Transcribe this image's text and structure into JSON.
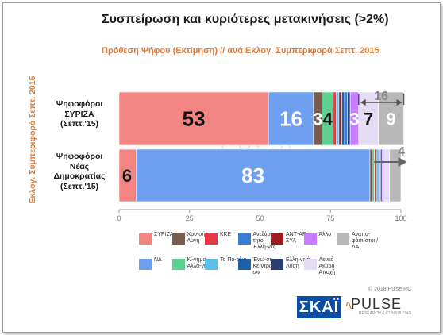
{
  "header": {
    "title": "Συσπείρωση και κυριότερες μετακινήσεις (>2%)",
    "subtitle": "Πρόθεση Ψήφου (Εκτίμηση) // ανά Εκλογ. Συμπεριφορά Σεπτ. 2015",
    "side_label": "Εκλογ. Συμπεριφορά Σεπτ. 2015"
  },
  "chart_data": {
    "type": "bar",
    "orientation": "horizontal",
    "stacked": true,
    "title": "Συσπείρωση και κυριότερες μετακινήσεις (>2%)",
    "subtitle": "Πρόθεση Ψήφου (Εκτίμηση) // ανά Εκλογ. Συμπεριφορά Σεπτ. 2015",
    "xlim": [
      0,
      100
    ],
    "xticks": [
      0,
      25,
      50,
      75,
      100
    ],
    "grid": false,
    "legend_position": "bottom",
    "categories": [
      "Ψηφοφόροι ΣΥΡΙΖΑ (Σεπτ.'15)",
      "Ψηφοφόροι Νέας Δημοκρατίας (Σεπτ.'15)"
    ],
    "category_lines": [
      [
        "Ψηφοφόροι",
        "ΣΥΡΙΖΑ",
        "(Σεπτ.'15)"
      ],
      [
        "Ψηφοφόροι",
        "Νέας",
        "Δημοκρατίας",
        "(Σεπτ.'15)"
      ]
    ],
    "series": [
      {
        "name": "ΣΥΡΙΖΑ",
        "color": "#f28482",
        "values": [
          53,
          6
        ],
        "labels": [
          "53",
          "6"
        ]
      },
      {
        "name": "ΝΔ",
        "color": "#6fa0f0",
        "values": [
          16,
          83
        ],
        "labels": [
          "16",
          "83"
        ]
      },
      {
        "name": "Χρυσή Αυγή",
        "color": "#7a5c4e",
        "values": [
          3,
          0.8
        ],
        "labels": [
          "3",
          ""
        ]
      },
      {
        "name": "Κίνημα Αλλαγής",
        "color": "#5ed08f",
        "values": [
          4,
          0.8
        ],
        "labels": [
          "4",
          ""
        ]
      },
      {
        "name": "ΚΚΕ",
        "color": "#e63946",
        "values": [
          1,
          0.5
        ],
        "labels": [
          "",
          ""
        ]
      },
      {
        "name": "Το Ποτάμι",
        "color": "#5bc0eb",
        "values": [
          1,
          0.5
        ],
        "labels": [
          "",
          ""
        ]
      },
      {
        "name": "ΑΝΤ-ΑΡ-ΣΥΑ",
        "color": "#9e1b1b",
        "values": [
          1,
          0.3
        ],
        "labels": [
          "",
          ""
        ]
      },
      {
        "name": "Ένωση Κεντρώων",
        "color": "#1d5fa8",
        "values": [
          1,
          0.6
        ],
        "labels": [
          "",
          ""
        ]
      },
      {
        "name": "Ανεξάρτητοι Έλληνες",
        "color": "#3a7bd5",
        "values": [
          1,
          0.4
        ],
        "labels": [
          "",
          ""
        ]
      },
      {
        "name": "Ελληνική Λύση",
        "color": "#2c3e70",
        "values": [
          1,
          0.4
        ],
        "labels": [
          "",
          ""
        ]
      },
      {
        "name": "Άλλο",
        "color": "#c77dff",
        "values": [
          3,
          0.7
        ],
        "labels": [
          "3",
          ""
        ]
      },
      {
        "name": "Λευκό Άκυρο Αποχή",
        "color": "#e4ddf3",
        "values": [
          7,
          2
        ],
        "labels": [
          "7",
          ""
        ]
      },
      {
        "name": "Αναποφάσιστοι / ΔΑ",
        "color": "#b8b8b8",
        "values": [
          9,
          4
        ],
        "labels": [
          "9",
          ""
        ]
      }
    ],
    "annotations": [
      {
        "bar": 0,
        "text": "16",
        "kind": "bracket"
      },
      {
        "bar": 1,
        "text": "4",
        "kind": "arrow"
      }
    ]
  },
  "legend": {
    "items": [
      {
        "label": "ΣΥΡΙΖΑ",
        "color": "#f28482"
      },
      {
        "label": "Χρυ-σή Αυγή",
        "color": "#7a5c4e"
      },
      {
        "label": "ΚΚΕ",
        "color": "#e63946"
      },
      {
        "label": "Ανεξάρ-τητοι Έλλη-νες",
        "color": "#3a7bd5"
      },
      {
        "label": "ΑΝΤ-ΑΡ-ΣΥΑ",
        "color": "#9e1b1b"
      },
      {
        "label": "Άλλο",
        "color": "#c77dff"
      },
      {
        "label": "Αναπο-φάσι-στοι / ΔΑ",
        "color": "#b8b8b8"
      },
      {
        "label": "ΝΔ",
        "color": "#6fa0f0"
      },
      {
        "label": "Κί-νημα Αλλα-γής",
        "color": "#5ed08f"
      },
      {
        "label": "Το Πο-τάμι",
        "color": "#5bc0eb"
      },
      {
        "label": "Ένω-ση Κε-ντρώ-ων",
        "color": "#1d5fa8"
      },
      {
        "label": "Ελλη-νική Λύση",
        "color": "#2c3e70"
      },
      {
        "label": "Λευκό Άκυρο Αποχή",
        "color": "#e4ddf3"
      }
    ]
  },
  "footer": {
    "copyright": "© 2018 Pulse RC",
    "logo_skai": "ΣΚΑΪ",
    "logo_pulse": "PULSE",
    "logo_pulse_tag": "RESEARCH & CONSULTING"
  }
}
